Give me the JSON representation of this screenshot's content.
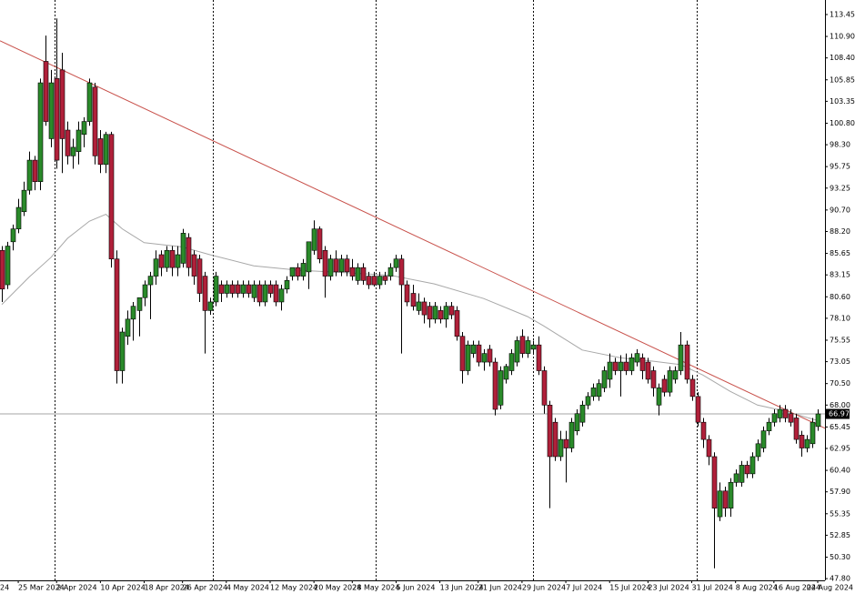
{
  "chart_data": {
    "type": "candlestick",
    "edge_label": "24",
    "ylim": [
      47.6,
      115.14
    ],
    "yticks": [
      113.45,
      {
        "value": 110.9,
        "label": "110.90"
      },
      {
        "value": 108.4,
        "label": "108.40"
      },
      105.85,
      103.35,
      {
        "value": 100.8,
        "label": "100.80"
      },
      {
        "value": 98.3,
        "label": "98.30"
      },
      95.75,
      93.25,
      {
        "value": 90.7,
        "label": "90.70"
      },
      {
        "value": 88.2,
        "label": "88.20"
      },
      85.65,
      83.15,
      {
        "value": 80.6,
        "label": "80.60"
      },
      {
        "value": 78.1,
        "label": "78.10"
      },
      75.55,
      73.05,
      {
        "value": 70.5,
        "label": "70.50"
      },
      {
        "value": 68.0,
        "label": "68.00"
      },
      65.45,
      62.95,
      {
        "value": 60.4,
        "label": "60.40"
      },
      {
        "value": 57.9,
        "label": "57.90"
      },
      55.35,
      52.85,
      {
        "value": 50.3,
        "label": "50.30"
      },
      {
        "value": 47.8,
        "label": "47.80"
      }
    ],
    "last_price": 66.97,
    "up_color": "#2a8a2a",
    "down_color": "#b0203a",
    "categories": [
      null,
      null,
      null,
      "25 Mar 2024",
      null,
      null,
      null,
      null,
      null,
      null,
      "2 Apr 2024",
      null,
      null,
      null,
      null,
      null,
      null,
      null,
      "10 Apr 2024",
      null,
      null,
      null,
      null,
      null,
      null,
      null,
      "18 Apr 2024",
      null,
      null,
      null,
      null,
      null,
      null,
      "26 Apr 2024",
      null,
      null,
      null,
      null,
      null,
      null,
      null,
      "4 May 2024",
      null,
      null,
      null,
      null,
      null,
      null,
      null,
      "12 May 2024",
      null,
      null,
      null,
      null,
      null,
      null,
      null,
      "20 May 2024",
      null,
      null,
      null,
      null,
      null,
      null,
      "28 May 2024",
      null,
      null,
      null,
      null,
      null,
      null,
      null,
      "5 Jun 2024",
      null,
      null,
      null,
      null,
      null,
      null,
      null,
      "13 Jun 2024",
      null,
      null,
      null,
      null,
      null,
      null,
      "21 Jun 2024",
      null,
      null,
      null,
      null,
      null,
      null,
      null,
      "29 Jun 2024",
      null,
      null,
      null,
      null,
      null,
      null,
      null,
      "7 Jul 2024",
      null,
      null,
      null,
      null,
      null,
      null,
      null,
      "15 Jul 2024",
      null,
      null,
      null,
      null,
      null,
      null,
      "23 Jul 2024",
      null,
      null,
      null,
      null,
      null,
      null,
      null,
      "31 Jul 2024",
      null,
      null,
      null,
      null,
      null,
      null,
      null,
      "8 Aug 2024",
      null,
      null,
      null,
      null,
      null,
      null,
      "16 Aug 2024",
      null,
      null,
      null,
      null,
      null,
      null,
      null,
      "24 Aug 2024"
    ],
    "ohlc": [
      [
        86,
        86.5,
        80,
        81.5
      ],
      [
        82,
        87,
        81.5,
        86.5
      ],
      [
        87,
        89,
        86,
        88.5
      ],
      [
        88.5,
        92,
        88,
        91
      ],
      [
        90.5,
        94,
        90,
        93
      ],
      [
        93,
        97.5,
        92.5,
        96.5
      ],
      [
        96.5,
        97,
        93,
        94
      ],
      [
        94,
        106,
        93,
        105.5
      ],
      [
        108,
        111,
        100.5,
        101
      ],
      [
        99,
        107,
        98,
        105.5
      ],
      [
        106,
        113,
        95.5,
        96.5
      ],
      [
        107,
        109,
        95,
        99
      ],
      [
        100,
        101,
        96,
        97
      ],
      [
        97,
        99,
        95.5,
        98
      ],
      [
        97.5,
        101,
        96,
        100
      ],
      [
        99.5,
        101.5,
        98,
        101
      ],
      [
        101,
        106,
        100.5,
        105.5
      ],
      [
        105,
        105.5,
        96,
        97
      ],
      [
        99,
        100,
        95,
        96
      ],
      [
        96,
        99.8,
        95,
        99.5
      ],
      [
        99.5,
        99.8,
        84,
        85
      ],
      [
        85,
        86,
        70.5,
        72
      ],
      [
        72,
        77,
        70.5,
        76.5
      ],
      [
        76,
        79,
        75,
        78
      ],
      [
        78,
        80,
        75.5,
        79.5
      ],
      [
        79,
        80.5,
        76,
        80.5
      ],
      [
        80.5,
        82.5,
        79.5,
        82
      ],
      [
        82,
        83.5,
        78,
        83
      ],
      [
        83,
        86,
        82,
        85
      ],
      [
        85.5,
        86,
        83,
        84
      ],
      [
        84,
        86.5,
        83.5,
        86
      ],
      [
        86,
        86.5,
        83,
        84
      ],
      [
        84,
        86.5,
        83,
        85.5
      ],
      [
        84.5,
        88.5,
        84,
        88
      ],
      [
        87.5,
        88,
        83,
        84
      ],
      [
        85.5,
        86,
        82,
        83
      ],
      [
        85,
        85.5,
        80,
        81
      ],
      [
        83,
        83.5,
        74,
        79
      ],
      [
        79,
        80.5,
        78.5,
        80
      ],
      [
        80,
        83.5,
        79.5,
        83
      ],
      [
        82,
        82.5,
        80,
        81
      ],
      [
        81,
        82.5,
        80.5,
        82
      ],
      [
        82,
        82.5,
        80.5,
        81
      ],
      [
        82,
        82.5,
        80.5,
        81
      ],
      [
        81,
        82.5,
        80.5,
        82
      ],
      [
        82,
        82.5,
        80.5,
        81
      ],
      [
        80.5,
        82.5,
        80,
        82
      ],
      [
        82,
        82.5,
        79.5,
        80
      ],
      [
        80,
        82.5,
        79.5,
        82
      ],
      [
        82,
        82.5,
        80.5,
        81
      ],
      [
        82,
        82.5,
        79.5,
        80
      ],
      [
        80,
        82,
        79,
        81.5
      ],
      [
        81.5,
        83,
        81,
        82.5
      ],
      [
        83,
        84,
        82.5,
        84
      ],
      [
        84,
        84.5,
        82.5,
        83
      ],
      [
        83,
        85,
        82.5,
        84.5
      ],
      [
        83.5,
        87,
        81.5,
        87
      ],
      [
        86,
        89.5,
        85.5,
        88.5
      ],
      [
        88.5,
        88.8,
        84.5,
        85
      ],
      [
        86,
        86.5,
        80.5,
        83
      ],
      [
        83,
        85.5,
        82.5,
        85
      ],
      [
        85,
        86,
        83,
        83.5
      ],
      [
        83.5,
        85.5,
        83,
        85
      ],
      [
        85,
        85.5,
        83,
        83.5
      ],
      [
        84,
        85,
        82.5,
        83
      ],
      [
        82.5,
        84.5,
        82,
        84
      ],
      [
        84,
        84.5,
        82,
        82.5
      ],
      [
        83,
        83.5,
        81.5,
        82
      ],
      [
        83,
        83.5,
        81.8,
        82
      ],
      [
        82,
        83.5,
        81.5,
        83
      ],
      [
        83,
        83.5,
        82,
        82.5
      ],
      [
        83,
        84.5,
        82.5,
        84
      ],
      [
        84,
        85.5,
        83.5,
        85
      ],
      [
        85,
        85.5,
        74,
        82
      ],
      [
        82,
        82.5,
        79.5,
        80
      ],
      [
        81,
        82,
        79,
        79.5
      ],
      [
        79,
        81,
        78.5,
        80
      ],
      [
        80,
        80.5,
        77.5,
        78.5
      ],
      [
        79.5,
        80,
        77,
        78
      ],
      [
        78,
        80,
        77.5,
        79.5
      ],
      [
        79,
        79.5,
        77.5,
        78
      ],
      [
        78,
        80,
        77,
        79.5
      ],
      [
        79.5,
        80,
        78,
        78.5
      ],
      [
        79,
        79.5,
        75.5,
        76
      ],
      [
        76,
        76.5,
        70.5,
        72
      ],
      [
        72,
        75.5,
        71.5,
        75
      ],
      [
        74,
        75.5,
        73.5,
        75
      ],
      [
        75,
        75.5,
        72.5,
        73
      ],
      [
        73,
        74.5,
        72,
        74
      ],
      [
        74.5,
        75,
        72.5,
        73
      ],
      [
        73,
        73.5,
        66.8,
        67.5
      ],
      [
        68,
        72.5,
        67.5,
        72
      ],
      [
        71,
        72.8,
        70.5,
        72.5
      ],
      [
        72,
        74.5,
        71.5,
        74
      ],
      [
        73,
        76,
        72.5,
        75.5
      ],
      [
        76,
        76.8,
        73.5,
        74
      ],
      [
        74,
        76,
        73.5,
        75.5
      ],
      [
        74.5,
        75.5,
        74,
        75
      ],
      [
        75,
        76,
        71.5,
        72
      ],
      [
        72,
        72.5,
        67,
        68
      ],
      [
        68,
        68.5,
        56,
        62
      ],
      [
        66,
        66.5,
        61.5,
        62
      ],
      [
        62,
        65,
        61.5,
        64
      ],
      [
        64,
        65,
        59,
        63
      ],
      [
        63,
        66.5,
        62.5,
        66
      ],
      [
        65,
        67.5,
        64.5,
        67
      ],
      [
        66,
        68.5,
        65.5,
        68
      ],
      [
        68,
        69.5,
        67.5,
        69
      ],
      [
        69,
        70.5,
        68.5,
        70
      ],
      [
        69,
        71,
        68.5,
        70.5
      ],
      [
        70,
        72.5,
        69.5,
        72
      ],
      [
        71,
        74,
        70,
        73
      ],
      [
        73,
        73.5,
        71.5,
        72
      ],
      [
        72,
        73.8,
        69,
        73
      ],
      [
        73,
        74,
        71.5,
        72
      ],
      [
        72,
        74,
        71.5,
        73.5
      ],
      [
        73,
        74.5,
        72.5,
        74
      ],
      [
        73.5,
        74,
        71,
        72
      ],
      [
        73,
        73.5,
        70.5,
        71
      ],
      [
        72,
        72.5,
        69,
        70
      ],
      [
        68,
        70.5,
        66.8,
        70
      ],
      [
        71,
        71.5,
        69,
        69.5
      ],
      [
        69.5,
        72.5,
        69,
        72
      ],
      [
        71,
        72.5,
        70.5,
        72
      ],
      [
        72,
        76.5,
        71.5,
        75
      ],
      [
        75,
        75.5,
        70.5,
        71
      ],
      [
        71,
        71.5,
        68.5,
        69
      ],
      [
        69,
        69.5,
        65.5,
        66
      ],
      [
        66,
        66.5,
        63,
        64
      ],
      [
        64,
        64.5,
        61,
        62
      ],
      [
        62,
        62.5,
        49,
        56
      ],
      [
        55,
        59,
        54.5,
        58
      ],
      [
        58,
        58.5,
        55,
        56
      ],
      [
        56,
        59.5,
        55,
        59
      ],
      [
        59,
        60.5,
        58.5,
        60
      ],
      [
        59,
        61.5,
        58.5,
        61
      ],
      [
        61,
        61.5,
        59.5,
        60
      ],
      [
        60,
        62.5,
        59.5,
        62
      ],
      [
        62,
        64,
        61.5,
        63.5
      ],
      [
        63,
        65.5,
        62.5,
        65
      ],
      [
        65,
        66.5,
        64.5,
        66
      ],
      [
        66,
        67.5,
        65.5,
        67
      ],
      [
        66.5,
        68,
        66,
        67.5
      ],
      [
        67.5,
        68,
        66,
        66.5
      ],
      [
        67,
        67.5,
        65.5,
        66
      ],
      [
        66.5,
        67,
        63.5,
        64
      ],
      [
        64.5,
        65,
        62,
        63
      ],
      [
        63,
        64.5,
        62.5,
        64
      ],
      [
        63.5,
        66.5,
        63,
        66
      ],
      [
        65.5,
        67.5,
        65,
        66.97
      ]
    ],
    "moving_average": {
      "color": "#a8a8a8",
      "x": [
        0,
        5,
        9,
        12,
        16,
        19,
        22,
        26,
        33,
        38,
        46,
        54,
        63,
        71,
        79,
        88,
        96,
        99,
        106,
        113,
        119,
        124,
        128,
        133,
        138,
        143,
        149
      ],
      "values": [
        79.7,
        82.9,
        85.2,
        87.4,
        89.4,
        90.2,
        88.5,
        86.9,
        86.4,
        85.5,
        84.2,
        83.7,
        83.4,
        83.1,
        82.1,
        80.4,
        78.3,
        77.2,
        74.4,
        73.5,
        73.1,
        72.7,
        71.5,
        69.6,
        68.0,
        67.3,
        66.2
      ]
    },
    "trendline": {
      "color": "#c8504a",
      "x": [
        0,
        149
      ],
      "values": [
        110.3,
        65.7
      ]
    }
  }
}
